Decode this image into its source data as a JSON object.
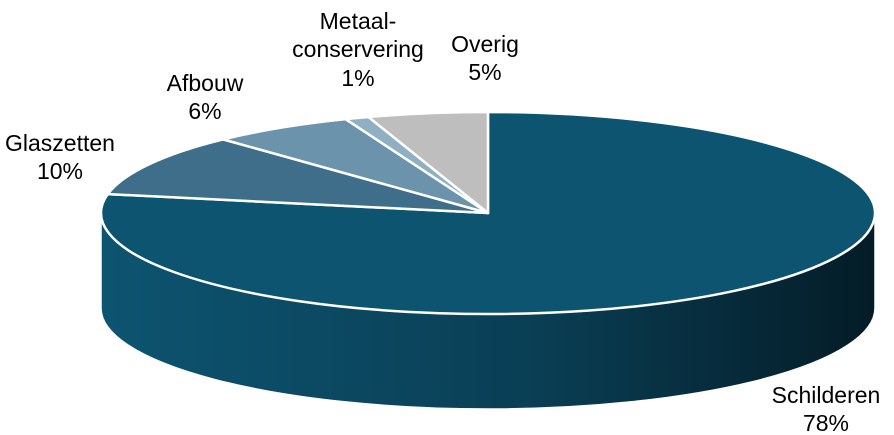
{
  "chart_data": {
    "type": "pie",
    "style": "3d",
    "title": "",
    "slices": [
      {
        "label": "Schilderen",
        "value": 78,
        "value_label": "78%",
        "color": "#0d5470"
      },
      {
        "label": "Glaszetten",
        "value": 10,
        "value_label": "10%",
        "color": "#3f6e8b"
      },
      {
        "label": "Afbouw",
        "value": 6,
        "value_label": "6%",
        "color": "#6b93ab"
      },
      {
        "label": "Metaal-conservering",
        "label_lines": [
          "Metaal-",
          "conservering"
        ],
        "value": 1,
        "value_label": "1%",
        "color": "#8fafc3"
      },
      {
        "label": "Overig",
        "value": 5,
        "value_label": "5%",
        "color": "#bebebe"
      }
    ],
    "legend": "none",
    "label_placement": "outside"
  }
}
